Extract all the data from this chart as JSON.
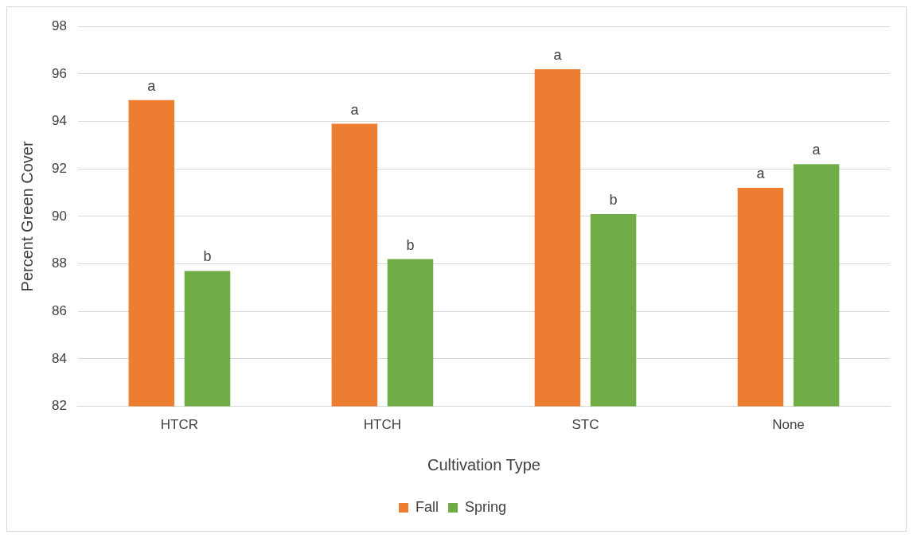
{
  "chart_data": {
    "type": "bar",
    "xlabel": "Cultivation Type",
    "ylabel": "Percent Green Cover",
    "categories": [
      "HTCR",
      "HTCH",
      "STC",
      "None"
    ],
    "series": [
      {
        "name": "Fall",
        "color": "#ed7d31",
        "values": [
          94.9,
          93.9,
          96.2,
          91.2
        ],
        "value_labels": [
          "a",
          "a",
          "a",
          "a"
        ]
      },
      {
        "name": "Spring",
        "color": "#70ad47",
        "values": [
          87.7,
          88.2,
          90.1,
          92.2
        ],
        "value_labels": [
          "b",
          "b",
          "b",
          "a"
        ]
      }
    ],
    "ylim": [
      82,
      98
    ],
    "yticks": [
      82,
      84,
      86,
      88,
      90,
      92,
      94,
      96,
      98
    ],
    "grid": "y",
    "legend": "bottom"
  }
}
